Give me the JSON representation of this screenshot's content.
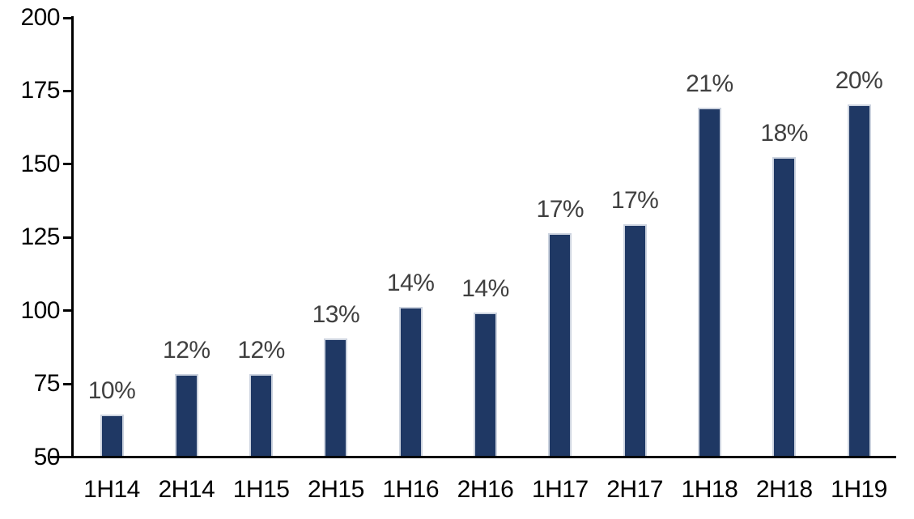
{
  "chart_data": {
    "type": "bar",
    "title": "",
    "xlabel": "",
    "ylabel": "",
    "categories": [
      "1H14",
      "2H14",
      "1H15",
      "2H15",
      "1H16",
      "2H16",
      "1H17",
      "2H17",
      "1H18",
      "2H18",
      "1H19"
    ],
    "values": [
      64,
      78,
      78,
      90,
      101,
      99,
      126,
      129,
      169,
      152,
      170
    ],
    "bar_labels": [
      "10%",
      "12%",
      "12%",
      "13%",
      "14%",
      "14%",
      "17%",
      "17%",
      "21%",
      "18%",
      "20%"
    ],
    "ylim": [
      50,
      200
    ],
    "yticks": [
      50,
      75,
      100,
      125,
      150,
      175,
      200
    ],
    "grid": false,
    "legend_position": "none",
    "colors": {
      "bar_fill": "#1F3864",
      "bar_border": "#CCD3DF",
      "data_label": "#404040",
      "axis": "#000000",
      "tick_label": "#000000",
      "background": "#FFFFFF"
    }
  }
}
